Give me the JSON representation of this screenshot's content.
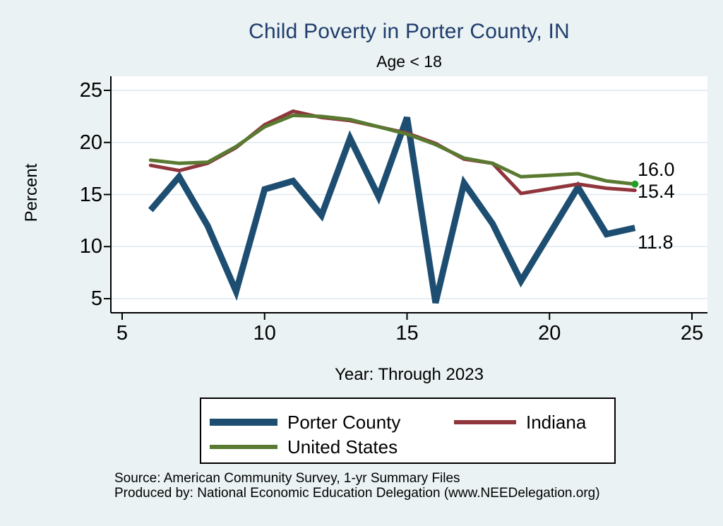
{
  "page_title": "Child Poverty in Porter County, IN",
  "page_subtitle": "Age < 18",
  "colors": {
    "background": "#eaf2f3",
    "plot_background": "#ffffff",
    "gridline": "#dbe9f1",
    "axis": "#000000",
    "title_text": "#1f3d6d",
    "navy": "#1d4e71",
    "maroon": "#90353b",
    "olive": "#5a7a32",
    "end_marker_green": "#21a026"
  },
  "chart_data": {
    "type": "line",
    "title": "Child Poverty in Porter County, IN",
    "subtitle": "Age < 18",
    "xlabel": "Year: Through 2023",
    "ylabel": "Percent",
    "x_ticks": [
      5,
      10,
      15,
      20,
      25
    ],
    "y_ticks": [
      5,
      10,
      15,
      20,
      25
    ],
    "xlim": [
      4.6,
      25.5
    ],
    "ylim": [
      3.6,
      26.4
    ],
    "grid": "horizontal gridlines only",
    "legend_position": "bottom",
    "x": [
      6,
      7,
      8,
      9,
      10,
      11,
      12,
      13,
      14,
      15,
      16,
      17,
      18,
      19,
      21,
      22,
      23
    ],
    "series": [
      {
        "name": "Porter County",
        "color": "#1d4e71",
        "line_width": 9,
        "values": [
          13.5,
          16.7,
          12.0,
          5.7,
          15.5,
          16.3,
          13.0,
          20.4,
          14.8,
          22.4,
          4.6,
          16.1,
          12.2,
          6.7,
          15.7,
          11.2,
          11.8
        ]
      },
      {
        "name": "Indiana",
        "color": "#90353b",
        "line_width": 5,
        "values": [
          17.8,
          17.3,
          18.0,
          19.5,
          21.7,
          23.0,
          22.4,
          22.1,
          21.5,
          20.9,
          19.9,
          18.4,
          18.0,
          15.1,
          16.0,
          15.6,
          15.4
        ]
      },
      {
        "name": "United States",
        "color": "#5a7a32",
        "line_width": 5,
        "end_marker": true,
        "values": [
          18.3,
          18.0,
          18.1,
          19.6,
          21.5,
          22.6,
          22.5,
          22.2,
          21.5,
          20.8,
          19.8,
          18.5,
          18.0,
          16.7,
          17.0,
          16.3,
          16.0
        ]
      }
    ],
    "end_labels": [
      {
        "series": "United States",
        "text": "16.0"
      },
      {
        "series": "Indiana",
        "text": "15.4"
      },
      {
        "series": "Porter County",
        "text": "11.8"
      }
    ]
  },
  "legend": {
    "items": [
      {
        "label": "Porter County"
      },
      {
        "label": "Indiana"
      },
      {
        "label": "United States"
      }
    ]
  },
  "footer": {
    "source": "Source: American Community Survey, 1-yr Summary Files",
    "produced_by": "Produced by: National Economic Education Delegation (www.NEEDelegation.org)"
  }
}
